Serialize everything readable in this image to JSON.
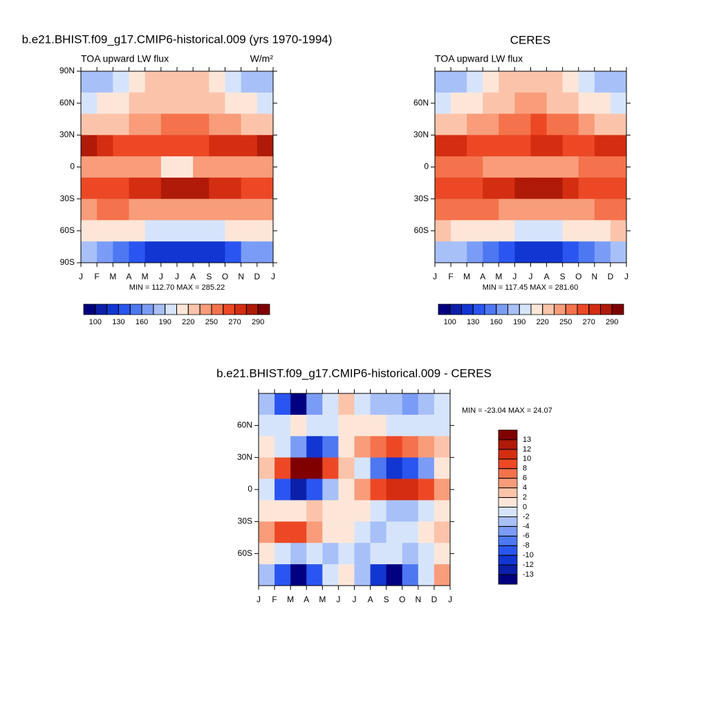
{
  "chart_data": [
    {
      "type": "contour",
      "title": "b.e21.BHIST.f09_g17.CMIP6-historical.009 (yrs 1970-1994)",
      "left_string": "TOA upward LW flux",
      "right_string": "W/m²",
      "stats": "MIN = 112.70 MAX = 285.22",
      "x_labels": [
        "J",
        "F",
        "M",
        "A",
        "M",
        "J",
        "J",
        "A",
        "S",
        "O",
        "N",
        "D",
        "J"
      ],
      "y": [
        80,
        60,
        40,
        20,
        0,
        -20,
        -40,
        -60,
        -80
      ],
      "ylim": [
        -90,
        90
      ],
      "yticks": [
        {
          "value": 90,
          "label": "90N"
        },
        {
          "value": 60,
          "label": "60N"
        },
        {
          "value": 30,
          "label": "30N"
        },
        0,
        {
          "value": -30,
          "label": "30S"
        },
        {
          "value": -60,
          "label": "60S"
        },
        {
          "value": -90,
          "label": "90S"
        }
      ],
      "values": [
        [
          185,
          188,
          195,
          205,
          220,
          228,
          228,
          222,
          205,
          192,
          186,
          184
        ],
        [
          200,
          205,
          210,
          220,
          228,
          232,
          232,
          228,
          220,
          210,
          205,
          200
        ],
        [
          225,
          228,
          232,
          240,
          248,
          255,
          258,
          255,
          248,
          238,
          230,
          226
        ],
        [
          280,
          276,
          268,
          265,
          262,
          262,
          265,
          268,
          270,
          272,
          276,
          282
        ],
        [
          245,
          248,
          245,
          240,
          238,
          215,
          218,
          242,
          245,
          245,
          245,
          245
        ],
        [
          262,
          265,
          268,
          272,
          278,
          285,
          286,
          284,
          278,
          270,
          265,
          262
        ],
        [
          248,
          250,
          250,
          248,
          245,
          242,
          240,
          240,
          242,
          245,
          248,
          248
        ],
        [
          215,
          212,
          208,
          205,
          200,
          198,
          198,
          198,
          200,
          205,
          210,
          215
        ],
        [
          175,
          170,
          155,
          140,
          125,
          118,
          115,
          118,
          125,
          140,
          160,
          172
        ]
      ],
      "levels": [
        100,
        115,
        130,
        145,
        160,
        175,
        190,
        205,
        220,
        235,
        250,
        260,
        270,
        280,
        290
      ],
      "colorbar_label_stride": 2,
      "colorbar_orientation": "horizontal",
      "colors": [
        "#000080",
        "#0b1fa8",
        "#1236d2",
        "#2a55f0",
        "#4d78f2",
        "#7b9cf6",
        "#a8c0f8",
        "#d6e4fb",
        "#fde6d8",
        "#fbc4aa",
        "#f89c7a",
        "#f4724c",
        "#ec4826",
        "#d42e12",
        "#b01a08",
        "#800000"
      ]
    },
    {
      "type": "contour",
      "title": "CERES",
      "left_string": "TOA upward LW flux",
      "stats": "MIN = 117.45 MAX = 281.60",
      "x_labels": [
        "J",
        "F",
        "M",
        "A",
        "M",
        "J",
        "J",
        "A",
        "S",
        "O",
        "N",
        "D",
        "J"
      ],
      "y": [
        80,
        60,
        40,
        20,
        0,
        -20,
        -40,
        -60,
        -80
      ],
      "ylim": [
        -90,
        90
      ],
      "yticks": [
        {
          "value": 60,
          "label": "60N"
        },
        {
          "value": 30,
          "label": "30N"
        },
        0,
        {
          "value": -30,
          "label": "30S"
        },
        {
          "value": -60,
          "label": "60S"
        }
      ],
      "values": [
        [
          182,
          186,
          195,
          208,
          222,
          228,
          228,
          222,
          208,
          195,
          186,
          182
        ],
        [
          200,
          205,
          212,
          222,
          230,
          235,
          235,
          230,
          222,
          210,
          205,
          200
        ],
        [
          228,
          232,
          238,
          245,
          252,
          258,
          262,
          258,
          250,
          240,
          232,
          228
        ],
        [
          272,
          270,
          266,
          265,
          265,
          268,
          272,
          270,
          268,
          268,
          270,
          272
        ],
        [
          252,
          252,
          250,
          245,
          242,
          240,
          242,
          245,
          248,
          250,
          252,
          252
        ],
        [
          262,
          265,
          268,
          270,
          276,
          282,
          282,
          280,
          274,
          268,
          265,
          262
        ],
        [
          250,
          252,
          252,
          250,
          248,
          245,
          245,
          245,
          246,
          248,
          250,
          250
        ],
        [
          220,
          218,
          215,
          210,
          205,
          202,
          200,
          202,
          205,
          210,
          215,
          220
        ],
        [
          178,
          175,
          165,
          150,
          135,
          122,
          118,
          122,
          135,
          150,
          168,
          178
        ]
      ],
      "levels": [
        100,
        115,
        130,
        145,
        160,
        175,
        190,
        205,
        220,
        235,
        250,
        260,
        270,
        280,
        290
      ],
      "colorbar_label_stride": 2,
      "colorbar_orientation": "horizontal",
      "colors": [
        "#000080",
        "#0b1fa8",
        "#1236d2",
        "#2a55f0",
        "#4d78f2",
        "#7b9cf6",
        "#a8c0f8",
        "#d6e4fb",
        "#fde6d8",
        "#fbc4aa",
        "#f89c7a",
        "#f4724c",
        "#ec4826",
        "#d42e12",
        "#b01a08",
        "#800000"
      ]
    },
    {
      "type": "contour",
      "title": "b.e21.BHIST.f09_g17.CMIP6-historical.009 - CERES",
      "stats": "MIN = -23.04 MAX =  24.07",
      "x_labels": [
        "J",
        "F",
        "M",
        "A",
        "M",
        "J",
        "J",
        "A",
        "S",
        "O",
        "N",
        "D",
        "J"
      ],
      "y": [
        80,
        60,
        40,
        20,
        0,
        -20,
        -40,
        -60,
        -80
      ],
      "ylim": [
        -90,
        90
      ],
      "yticks": [
        {
          "value": 60,
          "label": "60N"
        },
        {
          "value": 30,
          "label": "30N"
        },
        0,
        {
          "value": -30,
          "label": "30S"
        },
        {
          "value": -60,
          "label": "60S"
        }
      ],
      "values": [
        [
          -3,
          -10,
          -14,
          -6,
          -2,
          3,
          -1,
          -3,
          -4,
          -6,
          -3,
          -2
        ],
        [
          -2,
          -2,
          0,
          -1,
          -2,
          0,
          0,
          0,
          -2,
          -2,
          -1,
          -2
        ],
        [
          1,
          -2,
          -6,
          -11,
          -8,
          0,
          5,
          7,
          9,
          6,
          4,
          2
        ],
        [
          3,
          9,
          14,
          14,
          8,
          2,
          -2,
          -8,
          -11,
          -10,
          -6,
          0
        ],
        [
          -2,
          -10,
          -13,
          -10,
          -4,
          0,
          4,
          8,
          11,
          10,
          8,
          4
        ],
        [
          0,
          0,
          0,
          2,
          0,
          0,
          0,
          -2,
          -4,
          -4,
          -2,
          0
        ],
        [
          4,
          8,
          8,
          4,
          0,
          0,
          -2,
          -4,
          -2,
          -2,
          0,
          2
        ],
        [
          0,
          -2,
          -4,
          -2,
          -4,
          -2,
          -4,
          -2,
          -2,
          -4,
          -2,
          0
        ],
        [
          -4,
          -10,
          -14,
          -10,
          -2,
          0,
          -4,
          -12,
          -14,
          -8,
          -2,
          4
        ]
      ],
      "levels": [
        -13,
        -12,
        -10,
        -8,
        -6,
        -4,
        -2,
        0,
        2,
        4,
        6,
        8,
        10,
        12,
        13
      ],
      "colorbar_label_stride": 1,
      "colorbar_orientation": "vertical",
      "colors": [
        "#000080",
        "#0b1fa8",
        "#1236d2",
        "#2a55f0",
        "#4d78f2",
        "#7b9cf6",
        "#a8c0f8",
        "#d6e4fb",
        "#fde6d8",
        "#fbc4aa",
        "#f89c7a",
        "#f4724c",
        "#ec4826",
        "#d42e12",
        "#b01a08",
        "#800000"
      ]
    }
  ]
}
